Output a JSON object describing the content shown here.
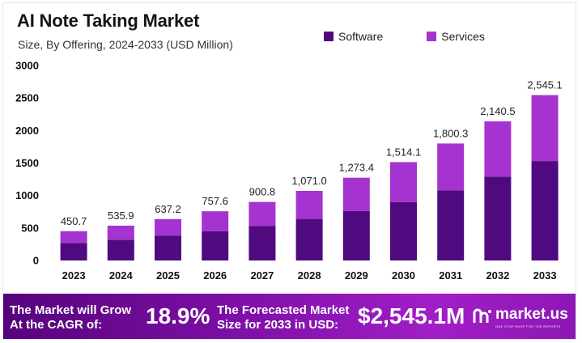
{
  "title": "AI Note Taking Market",
  "subtitle": "Size, By Offering, 2024-2033 (USD Million)",
  "legend": [
    {
      "label": "Software",
      "color": "#4f0a7f"
    },
    {
      "label": "Services",
      "color": "#a533d0"
    }
  ],
  "colors": {
    "software": "#4f0a7f",
    "services": "#a533d0"
  },
  "chart_data": {
    "type": "bar",
    "stacked": true,
    "title": "AI Note Taking Market",
    "subtitle": "Size, By Offering, 2024-2033 (USD Million)",
    "categories": [
      "2023",
      "2024",
      "2025",
      "2026",
      "2027",
      "2028",
      "2029",
      "2030",
      "2031",
      "2032",
      "2033"
    ],
    "series": [
      {
        "name": "Software",
        "values": [
          270,
          320,
          380,
          450,
          530,
          640,
          760,
          900,
          1080,
          1290,
          1530
        ]
      },
      {
        "name": "Services",
        "values": [
          180.7,
          215.9,
          257.2,
          307.6,
          370.8,
          431.0,
          513.4,
          614.1,
          720.3,
          850.5,
          1015.1
        ]
      }
    ],
    "totals": [
      450.7,
      535.9,
      637.2,
      757.6,
      900.8,
      1071.0,
      1273.4,
      1514.1,
      1800.3,
      2140.5,
      2545.1
    ],
    "total_labels": [
      "450.7",
      "535.9",
      "637.2",
      "757.6",
      "900.8",
      "1,071.0",
      "1,273.4",
      "1,514.1",
      "1,800.3",
      "2,140.5",
      "2,545.1"
    ],
    "yticks": [
      0,
      500,
      1000,
      1500,
      2000,
      2500,
      3000
    ],
    "ylim": [
      0,
      3000
    ],
    "xlabel": "",
    "ylabel": "",
    "grid": false,
    "legend_position": "top-right"
  },
  "footer": {
    "cagr_line1": "The Market will Grow",
    "cagr_line2": "At the CAGR of:",
    "cagr_value": "18.9%",
    "forecast_line1": "The Forecasted Market",
    "forecast_line2": "Size for 2033 in USD:",
    "forecast_value": "$2,545.1M",
    "brand": "market.us",
    "brand_tagline": "ONE STOP SHOP FOR THE REPORTS"
  }
}
